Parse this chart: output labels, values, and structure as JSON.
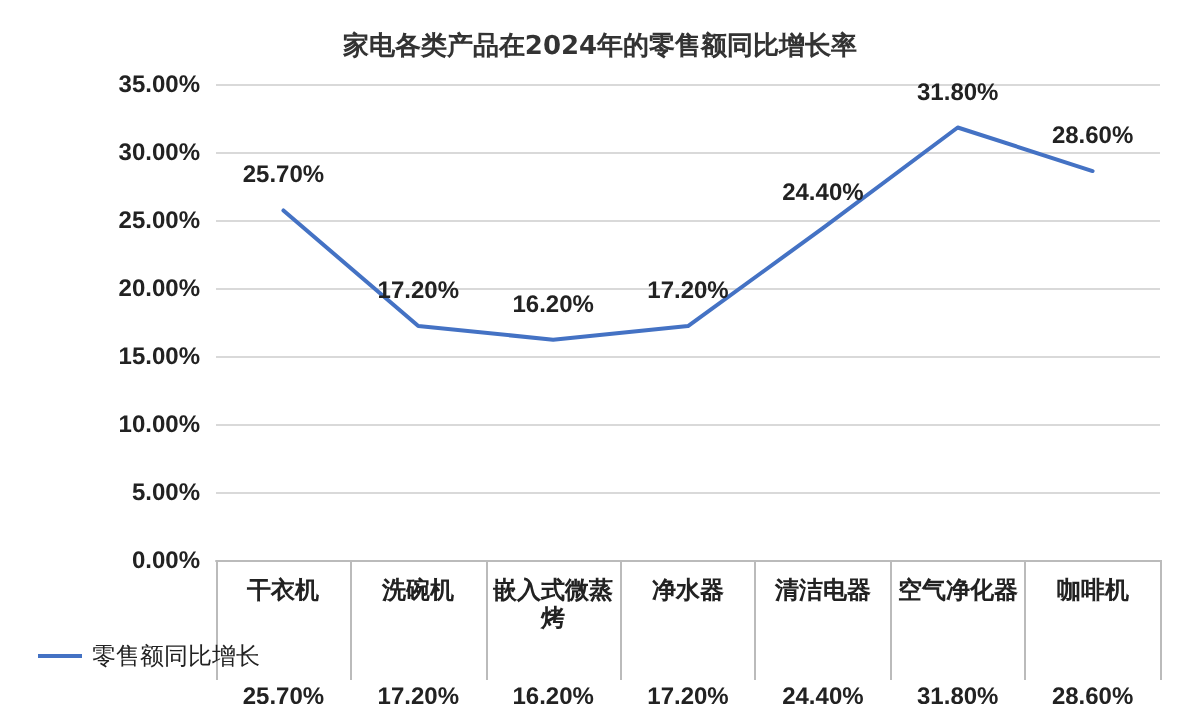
{
  "chart_data": {
    "type": "line",
    "title": "家电各类产品在2024年的零售额同比增长率",
    "categories": [
      "干衣机",
      "洗碗机",
      "嵌入式微蒸烤",
      "净水器",
      "清洁电器",
      "空气净化器",
      "咖啡机"
    ],
    "series": [
      {
        "name": "零售额同比增长",
        "color": "#4472c4",
        "values": [
          25.7,
          17.2,
          16.2,
          17.2,
          24.4,
          31.8,
          28.6
        ],
        "value_labels": [
          "25.70%",
          "17.20%",
          "16.20%",
          "17.20%",
          "24.40%",
          "31.80%",
          "28.60%"
        ]
      }
    ],
    "ylim": [
      0,
      35
    ],
    "yticks": [
      {
        "value": 0,
        "label": "0.00%"
      },
      {
        "value": 5,
        "label": "5.00%"
      },
      {
        "value": 10,
        "label": "10.00%"
      },
      {
        "value": 15,
        "label": "15.00%"
      },
      {
        "value": 20,
        "label": "20.00%"
      },
      {
        "value": 25,
        "label": "25.00%"
      },
      {
        "value": 30,
        "label": "30.00%"
      },
      {
        "value": 35,
        "label": "35.00%"
      }
    ],
    "grid": "y",
    "legend": "bottom",
    "marker": "none",
    "line_style": "solid"
  }
}
